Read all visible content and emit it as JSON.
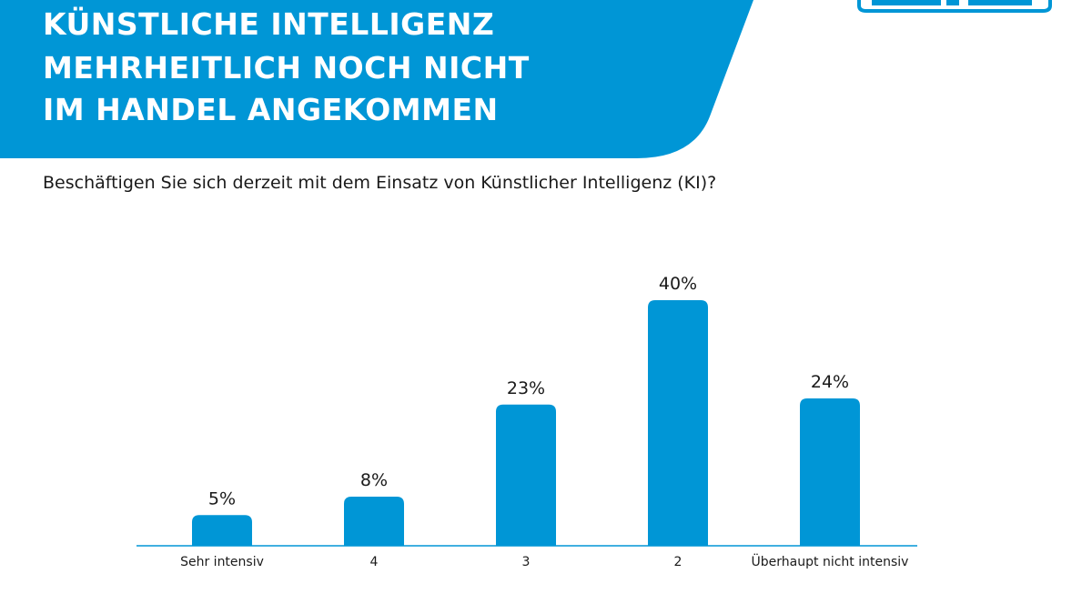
{
  "header": {
    "title_lines": [
      "KÜNSTLICHE INTELLIGENZ",
      "MEHRHEITLICH NOCH NICHT",
      "IM HANDEL ANGEKOMMEN"
    ]
  },
  "colors": {
    "brand_blue": "#0096d6",
    "text_dark": "#1a1a1a",
    "white": "#ffffff"
  },
  "chart_data": {
    "type": "bar",
    "title": "Beschäftigen Sie sich derzeit mit dem Einsatz von Künstlicher Intelligenz (KI)?",
    "categories": [
      "Sehr intensiv",
      "4",
      "3",
      "2",
      "Überhaupt nicht intensiv"
    ],
    "values": [
      5,
      8,
      23,
      40,
      24
    ],
    "value_labels": [
      "5%",
      "8%",
      "23%",
      "40%",
      "24%"
    ],
    "xlabel": "",
    "ylabel": "",
    "ylim": [
      0,
      40
    ],
    "grid": false
  }
}
